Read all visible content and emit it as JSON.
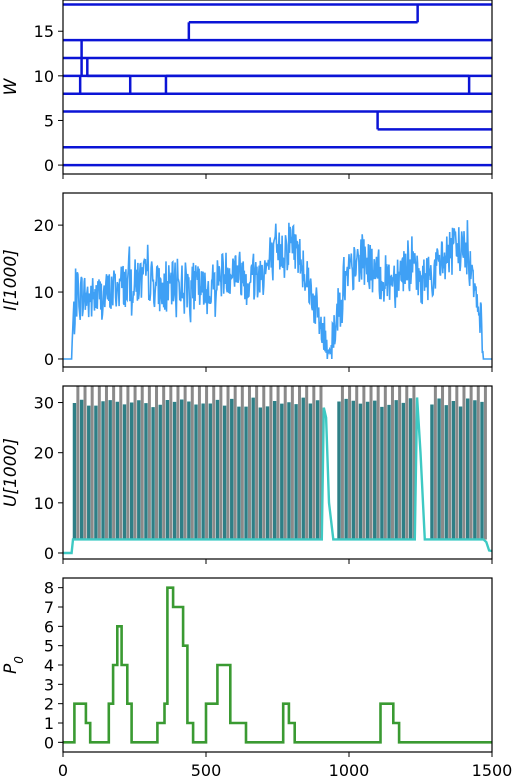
{
  "chart_data": [
    {
      "type": "line",
      "ylabel": "W",
      "xlim": [
        0,
        1500
      ],
      "ylim": [
        -1,
        18.5
      ],
      "yticks": [
        "0",
        "5",
        "10",
        "15"
      ],
      "color": "#0b14d6",
      "horizontal_lines": [
        0,
        2,
        4,
        6,
        8,
        10,
        12,
        14,
        16,
        18
      ],
      "branches": [
        {
          "x": 65,
          "from": 14,
          "to": 10
        },
        {
          "x": 85,
          "from": 12,
          "to": 10
        },
        {
          "x": 60,
          "from": 10,
          "to": 8
        },
        {
          "x": 235,
          "from": 10,
          "to": 8
        },
        {
          "x": 360,
          "from": 10,
          "to": 8
        },
        {
          "x": 1420,
          "from": 10,
          "to": 8
        },
        {
          "x": 440,
          "from": 16,
          "to": 14
        },
        {
          "x": 1240,
          "from": 18,
          "to": 16
        },
        {
          "x": 1100,
          "from": 6,
          "to": 4
        }
      ],
      "segments": [
        {
          "y": 16,
          "x0": 440,
          "x1": 1240
        },
        {
          "y": 10,
          "x0": 85,
          "x1": 235
        },
        {
          "y": 10,
          "x0": 360,
          "x1": 1420
        },
        {
          "y": 4,
          "x0": 1100,
          "x1": 1500
        }
      ]
    },
    {
      "type": "line",
      "ylabel": "I[1000]",
      "xlim": [
        0,
        1500
      ],
      "ylim": [
        -1.2,
        24.8
      ],
      "yticks": [
        "0",
        "10",
        "20"
      ],
      "color": "#3fa0f5",
      "series_shape": [
        [
          0,
          0
        ],
        [
          30,
          0
        ],
        [
          35,
          5
        ],
        [
          50,
          10
        ],
        [
          100,
          9
        ],
        [
          150,
          9.5
        ],
        [
          200,
          11
        ],
        [
          300,
          12
        ],
        [
          350,
          10
        ],
        [
          400,
          11.5
        ],
        [
          450,
          11
        ],
        [
          500,
          10
        ],
        [
          550,
          12.5
        ],
        [
          600,
          13.5
        ],
        [
          650,
          12
        ],
        [
          700,
          13
        ],
        [
          800,
          18
        ],
        [
          850,
          13
        ],
        [
          900,
          5
        ],
        [
          930,
          1
        ],
        [
          980,
          11
        ],
        [
          1050,
          15.5
        ],
        [
          1100,
          12
        ],
        [
          1150,
          12
        ],
        [
          1200,
          14
        ],
        [
          1250,
          11.5
        ],
        [
          1300,
          13
        ],
        [
          1350,
          16
        ],
        [
          1400,
          17
        ],
        [
          1440,
          12
        ],
        [
          1460,
          6
        ],
        [
          1470,
          0
        ],
        [
          1500,
          0
        ]
      ],
      "noise_amplitude": 3.5
    },
    {
      "type": "line",
      "ylabel": "U[1000]",
      "xlim": [
        0,
        1500
      ],
      "ylim": [
        -1.2,
        33.3
      ],
      "yticks": [
        "0",
        "10",
        "20",
        "30"
      ],
      "colors": {
        "gray_bars": "#8a8a8a",
        "teal_bars": "#2e7f86",
        "line": "#3ec9c3"
      },
      "pulse_period": 25,
      "pulse_height": 31,
      "baseline": 2.7,
      "gap_ranges": [
        [
          915,
          950
        ],
        [
          1235,
          1275
        ]
      ]
    },
    {
      "type": "line",
      "ylabel": "P_0",
      "xlim": [
        0,
        1500
      ],
      "ylim": [
        -0.5,
        8.5
      ],
      "yticks": [
        "0",
        "1",
        "2",
        "3",
        "4",
        "5",
        "6",
        "7",
        "8"
      ],
      "xticks": [
        "0",
        "500",
        "1000",
        "1500"
      ],
      "color": "#3a9a32",
      "x": [
        0,
        40,
        40,
        80,
        80,
        95,
        95,
        160,
        160,
        175,
        175,
        190,
        190,
        205,
        205,
        225,
        225,
        240,
        240,
        330,
        330,
        355,
        355,
        365,
        365,
        385,
        385,
        420,
        420,
        435,
        435,
        455,
        455,
        500,
        500,
        540,
        540,
        585,
        585,
        640,
        640,
        770,
        770,
        790,
        790,
        810,
        810,
        1110,
        1110,
        1155,
        1155,
        1175,
        1175,
        1500
      ],
      "y": [
        0,
        0,
        2,
        2,
        1,
        1,
        0,
        0,
        2,
        2,
        4,
        4,
        6,
        6,
        4,
        4,
        2,
        2,
        0,
        0,
        1,
        1,
        2,
        2,
        8,
        8,
        7,
        7,
        5,
        5,
        1,
        1,
        0,
        0,
        2,
        2,
        4,
        4,
        1,
        1,
        0,
        0,
        2,
        2,
        1,
        1,
        0,
        0,
        2,
        2,
        1,
        1,
        0,
        0
      ]
    }
  ]
}
